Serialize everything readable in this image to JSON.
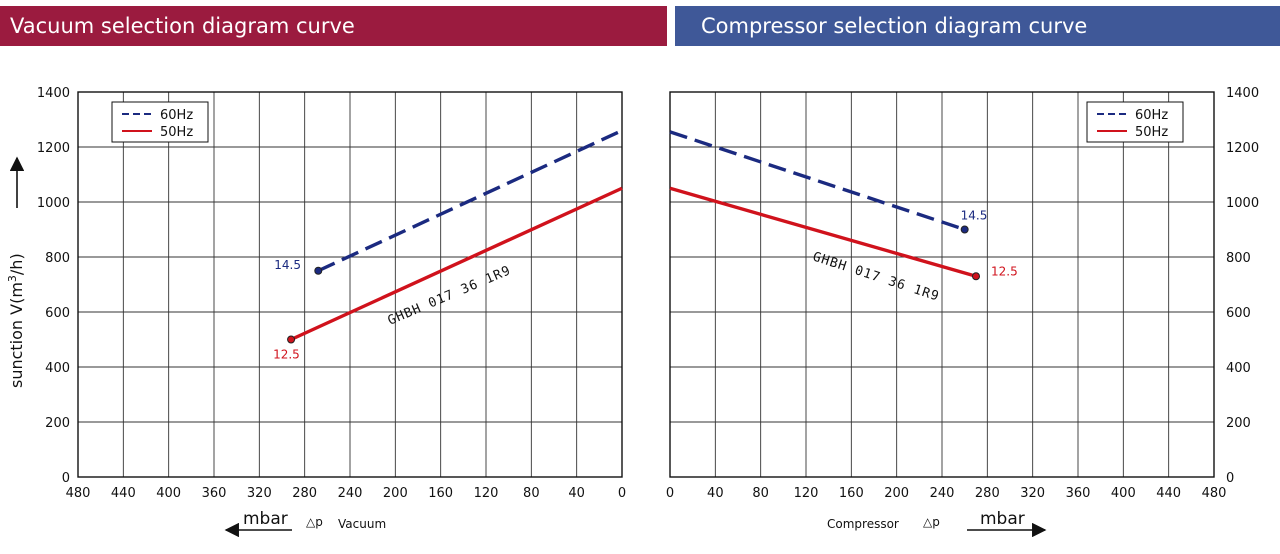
{
  "colors": {
    "vacuum_banner": "#9b1b3f",
    "compressor_banner": "#3f5898",
    "series_60hz": "#1b2a80",
    "series_50hz": "#d0121c"
  },
  "ylabel_text": "sunction V(m",
  "ylabel_sup": "3",
  "ylabel_end": "/h)",
  "chart_data": [
    {
      "type": "line",
      "title": "Vacuum selection diagram curve",
      "x_label_unit": "mbar",
      "x_label_symbol": "△p",
      "x_label_word": "Vacuum",
      "x_ticks": [
        480,
        440,
        400,
        360,
        320,
        280,
        240,
        200,
        160,
        120,
        80,
        40,
        0
      ],
      "y_ticks": [
        0,
        200,
        400,
        600,
        800,
        1000,
        1200,
        1400
      ],
      "xlim": [
        480,
        0
      ],
      "ylim": [
        0,
        1400
      ],
      "grid": true,
      "legend_position": "top-left",
      "model_label": "GHBH 017 36 1R9",
      "series": [
        {
          "name": "60Hz",
          "style": "dashed",
          "point_label": "14.5",
          "points": [
            {
              "x": 268,
              "y": 750
            },
            {
              "x": 0,
              "y": 1260
            }
          ]
        },
        {
          "name": "50Hz",
          "style": "solid",
          "point_label": "12.5",
          "points": [
            {
              "x": 292,
              "y": 500
            },
            {
              "x": 0,
              "y": 1050
            }
          ]
        }
      ]
    },
    {
      "type": "line",
      "title": "Compressor selection diagram curve",
      "x_label_unit": "mbar",
      "x_label_symbol": "△p",
      "x_label_word": "Compressor",
      "x_ticks": [
        0,
        40,
        80,
        120,
        160,
        200,
        240,
        280,
        320,
        360,
        400,
        440,
        480
      ],
      "y_ticks": [
        0,
        200,
        400,
        600,
        800,
        1000,
        1200,
        1400
      ],
      "xlim": [
        0,
        480
      ],
      "ylim": [
        0,
        1400
      ],
      "grid": true,
      "legend_position": "top-right",
      "model_label": "GHBH 017 36 1R9",
      "series": [
        {
          "name": "60Hz",
          "style": "dashed",
          "point_label": "14.5",
          "points": [
            {
              "x": 0,
              "y": 1255
            },
            {
              "x": 260,
              "y": 900
            }
          ]
        },
        {
          "name": "50Hz",
          "style": "solid",
          "point_label": "12.5",
          "points": [
            {
              "x": 0,
              "y": 1050
            },
            {
              "x": 270,
              "y": 730
            }
          ]
        }
      ]
    }
  ]
}
